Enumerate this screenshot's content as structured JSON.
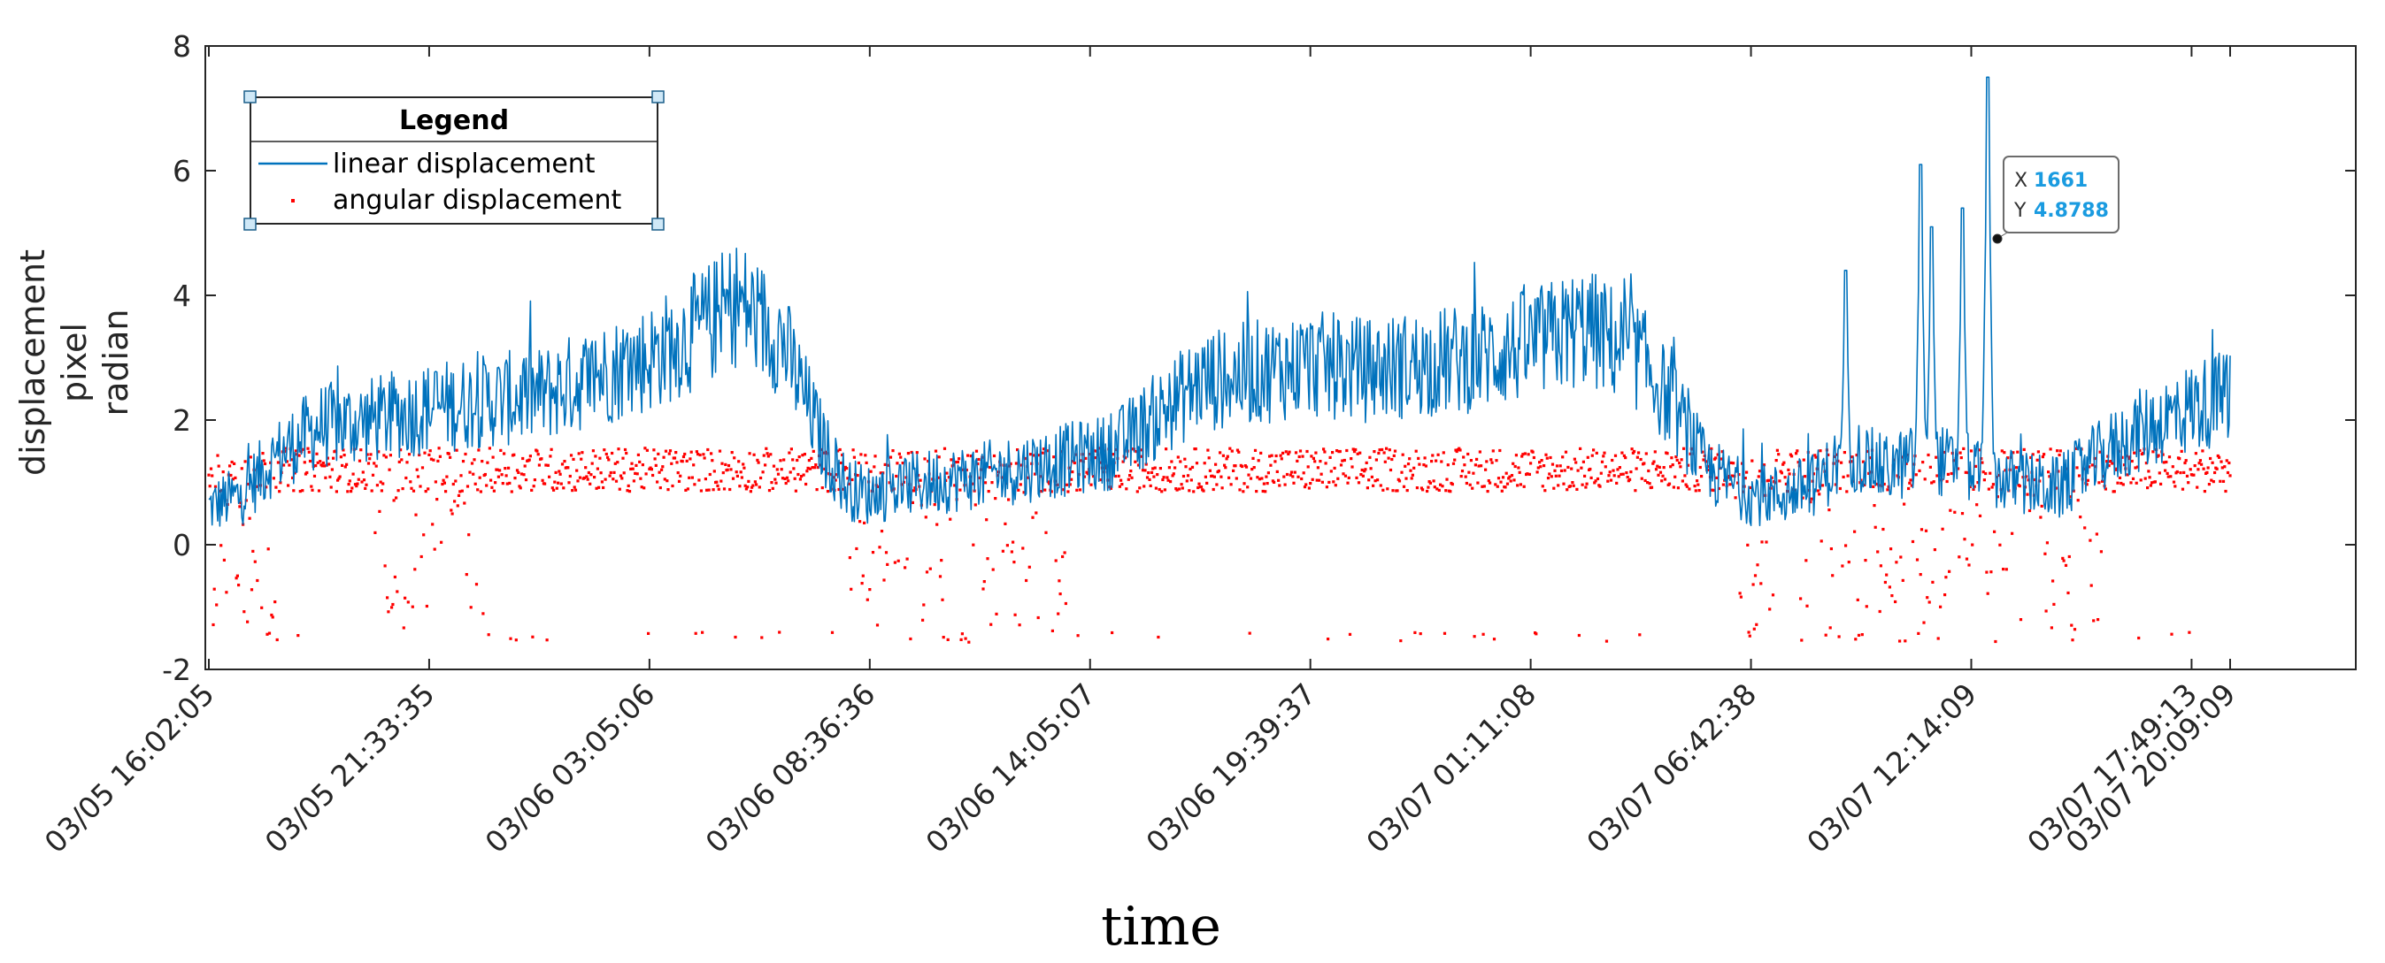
{
  "chart_data": {
    "type": "line",
    "xlabel": "time",
    "ylabel_lines": [
      "displacement",
      "pixel",
      "radian"
    ],
    "ylim": [
      -2,
      8
    ],
    "yticks": [
      -2,
      0,
      2,
      4,
      6,
      8
    ],
    "xlim": [
      0,
      2000
    ],
    "x_tick_positions": [
      0,
      200,
      400,
      600,
      800,
      1000,
      1200,
      1400,
      1600,
      1800,
      1835
    ],
    "x_tick_labels": [
      "03/05 16:02:05",
      "03/05 21:33:35",
      "03/06 03:05:06",
      "03/06 08:36:36",
      "03/06 14:05:07",
      "03/06 19:39:37",
      "03/07 01:11:08",
      "03/07 06:42:38",
      "03/07 12:14:09",
      "03/07 17:49:13",
      "03/07 20:09:09"
    ],
    "legend": {
      "title": "Legend",
      "position": "top-left",
      "entries": [
        "linear displacement",
        "angular displacement"
      ]
    },
    "series": [
      {
        "name": "linear displacement",
        "style": "line",
        "color": "#0072bd",
        "trend_x": [
          0,
          30,
          60,
          100,
          150,
          200,
          250,
          300,
          350,
          400,
          450,
          480,
          520,
          560,
          580,
          600,
          620,
          650,
          700,
          760,
          820,
          870,
          900,
          960,
          1000,
          1050,
          1100,
          1150,
          1200,
          1250,
          1300,
          1330,
          1360,
          1400,
          1430,
          1460,
          1490,
          1520,
          1560,
          1600,
          1640,
          1680,
          1700,
          1750,
          1800,
          1835
        ],
        "trend_y": [
          0.6,
          0.8,
          1.4,
          1.9,
          2.0,
          2.2,
          2.3,
          2.4,
          2.7,
          3.0,
          3.5,
          3.9,
          3.3,
          1.5,
          0.9,
          0.8,
          0.9,
          1.0,
          1.1,
          1.3,
          1.5,
          2.2,
          2.6,
          2.8,
          2.9,
          2.8,
          2.9,
          3.0,
          3.2,
          3.5,
          3.0,
          2.2,
          1.2,
          0.8,
          0.8,
          1.0,
          1.5,
          1.2,
          1.4,
          1.2,
          1.0,
          0.9,
          1.2,
          1.8,
          2.2,
          2.4
        ],
        "peaks": [
          {
            "x": 1615,
            "y": 7.5
          },
          {
            "x": 1554,
            "y": 6.1
          },
          {
            "x": 1564,
            "y": 5.1
          },
          {
            "x": 1592,
            "y": 5.4
          },
          {
            "x": 1486,
            "y": 4.4
          }
        ],
        "n_points": 1836
      },
      {
        "name": "angular displacement",
        "style": "markers",
        "color": "#ff0000",
        "typical_y": 1.2,
        "range": [
          -1.6,
          1.6
        ],
        "n_points": 1836
      }
    ],
    "datatip": {
      "x_key": "X",
      "x_value": "1661",
      "y_key": "Y",
      "y_value": "4.8788"
    }
  }
}
